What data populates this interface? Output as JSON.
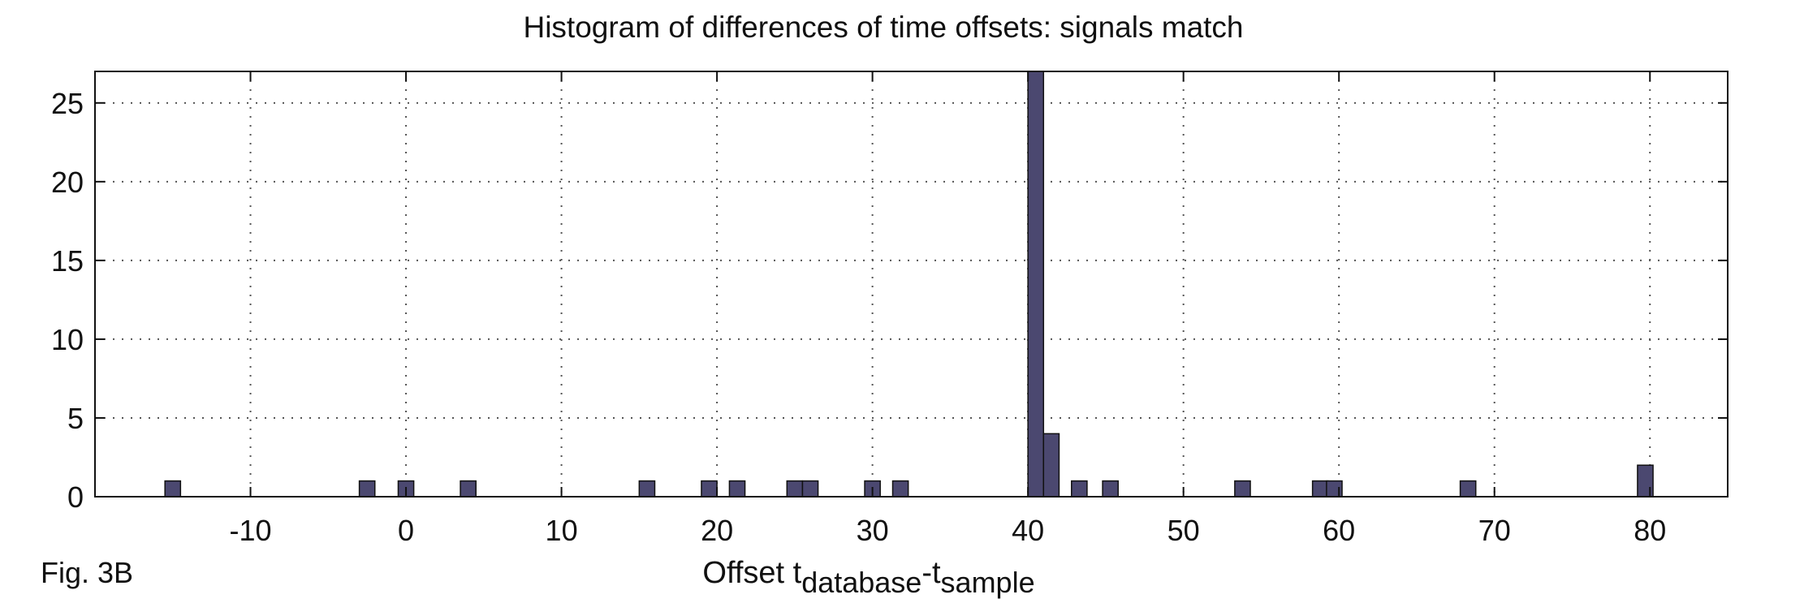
{
  "chart_data": {
    "type": "bar",
    "title": "Histogram of differences of time offsets: signals match",
    "xlabel": {
      "main": "Offset t",
      "sub1": "database",
      "dash": "-t",
      "sub2": "sample"
    },
    "ylabel": "",
    "figure_label": "Fig. 3B",
    "xlim": [
      -20,
      85
    ],
    "ylim": [
      0,
      27
    ],
    "xticks": [
      -10,
      0,
      10,
      20,
      30,
      40,
      50,
      60,
      70,
      80
    ],
    "xtick_labels": [
      "-10",
      "0",
      "10",
      "20",
      "30",
      "40",
      "50",
      "60",
      "70",
      "80"
    ],
    "yticks": [
      0,
      5,
      10,
      15,
      20,
      25
    ],
    "ytick_labels": [
      "0",
      "5",
      "10",
      "15",
      "20",
      "25"
    ],
    "grid": true,
    "bin_width": 1,
    "bar_color": "#4b4870",
    "bars": [
      {
        "x": -15,
        "count": 1
      },
      {
        "x": -2.5,
        "count": 1
      },
      {
        "x": 0,
        "count": 1
      },
      {
        "x": 4,
        "count": 1
      },
      {
        "x": 15.5,
        "count": 1
      },
      {
        "x": 19.5,
        "count": 1
      },
      {
        "x": 21.3,
        "count": 1
      },
      {
        "x": 25,
        "count": 1
      },
      {
        "x": 26,
        "count": 1
      },
      {
        "x": 30,
        "count": 1
      },
      {
        "x": 31.8,
        "count": 1
      },
      {
        "x": 40.5,
        "count": 27
      },
      {
        "x": 41.5,
        "count": 4
      },
      {
        "x": 43.3,
        "count": 1
      },
      {
        "x": 45.3,
        "count": 1
      },
      {
        "x": 53.8,
        "count": 1
      },
      {
        "x": 58.8,
        "count": 1
      },
      {
        "x": 59.7,
        "count": 1
      },
      {
        "x": 68.3,
        "count": 1
      },
      {
        "x": 79.7,
        "count": 2
      }
    ]
  }
}
